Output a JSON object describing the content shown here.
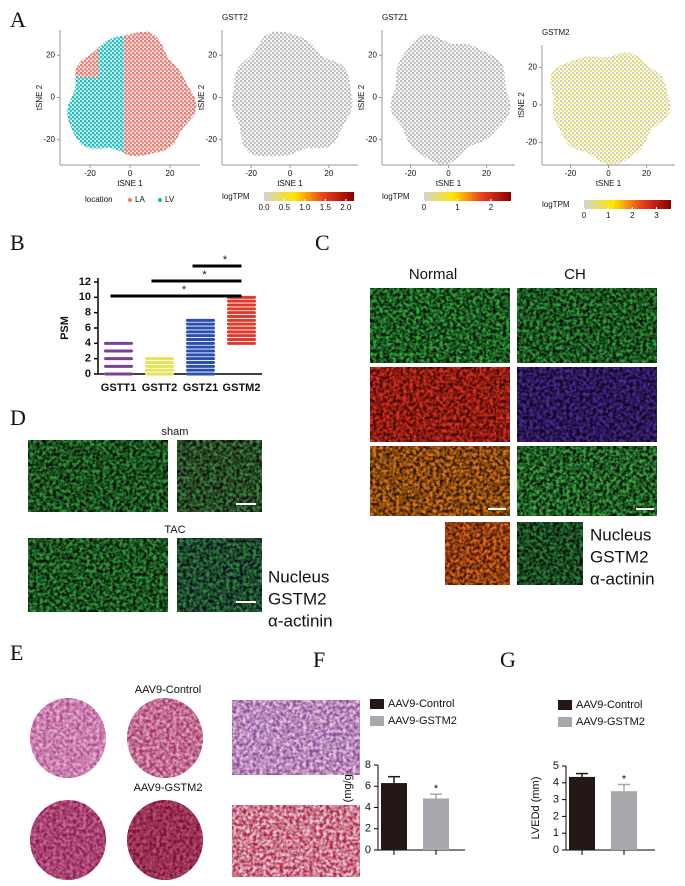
{
  "panel_labels": [
    "A",
    "B",
    "C",
    "D",
    "E",
    "F",
    "G"
  ],
  "chart_data": [
    {
      "type": "scatter",
      "xlabel": "tSNE 1",
      "ylabel": "tSNE 2",
      "xlim": [
        -35,
        35
      ],
      "ylim": [
        -32,
        32
      ],
      "xticks": [
        -20,
        0,
        20
      ],
      "yticks": [
        -20,
        0,
        20
      ],
      "legend": {
        "title": "location",
        "entries": [
          {
            "name": "LA",
            "color": "#f8766d"
          },
          {
            "name": "LV",
            "color": "#00bfc4"
          }
        ]
      }
    },
    {
      "type": "scatter",
      "title": "GSTT2",
      "xlabel": "tSNE 1",
      "ylabel": "tSNE 2",
      "xlim": [
        -35,
        35
      ],
      "ylim": [
        -32,
        32
      ],
      "xticks": [
        -20,
        0,
        20
      ],
      "yticks": [
        -20,
        0,
        20
      ],
      "colorbar": {
        "title": "logTPM",
        "lim": [
          0,
          2.2
        ],
        "ticks": [
          {
            "value": 0,
            "label": "0.0"
          },
          0.5,
          {
            "value": 1,
            "label": "1.0"
          },
          1.5,
          {
            "value": 2,
            "label": "2.0"
          }
        ],
        "colors": [
          "#d3d3d3",
          "#ffe600",
          "#e8401c",
          "#8b0000"
        ]
      }
    },
    {
      "type": "scatter",
      "title": "GSTZ1",
      "xlabel": "tSNE 1",
      "ylabel": "tSNE 2",
      "xlim": [
        -35,
        35
      ],
      "ylim": [
        -32,
        32
      ],
      "xticks": [
        -20,
        0,
        20
      ],
      "yticks": [
        -20,
        0,
        20
      ],
      "colorbar": {
        "title": "logTPM",
        "lim": [
          0,
          2.6
        ],
        "ticks": [
          0,
          1,
          2
        ],
        "colors": [
          "#d3d3d3",
          "#ffe600",
          "#e8401c",
          "#8b0000"
        ]
      }
    },
    {
      "type": "scatter",
      "title": "GSTM2",
      "xlabel": "tSNE 1",
      "ylabel": "tSNE 2",
      "xlim": [
        -35,
        35
      ],
      "ylim": [
        -32,
        32
      ],
      "xticks": [
        -20,
        0,
        20
      ],
      "yticks": [
        -20,
        0,
        20
      ],
      "colorbar": {
        "title": "logTPM",
        "lim": [
          0,
          3.6
        ],
        "ticks": [
          0,
          1,
          2,
          3
        ],
        "colors": [
          "#d3d3d3",
          "#ffe600",
          "#e8401c",
          "#8b0000"
        ]
      }
    },
    {
      "type": "strip",
      "ylabel": "PSM",
      "ylim": [
        0,
        12
      ],
      "yticks": [
        0,
        2,
        4,
        6,
        8,
        10,
        12
      ],
      "categories": [
        "GSTT1",
        "GSTT2",
        "GSTZ1",
        "GSTM2"
      ],
      "colors": [
        "#7b3f9e",
        "#e6e25a",
        "#2a4fb0",
        "#e03a2e"
      ],
      "values": [
        [
          0,
          1,
          2,
          3,
          4
        ],
        [
          0,
          0.5,
          1,
          1.5,
          2
        ],
        [
          0,
          0.5,
          1,
          1.5,
          2,
          2.5,
          3,
          3.5,
          4,
          4.5,
          5,
          5.5,
          6,
          6.5,
          7
        ],
        [
          4,
          4.5,
          5,
          5.5,
          6,
          6.5,
          7,
          7.5,
          8,
          8.5,
          9,
          9.5,
          10
        ]
      ],
      "annotations": [
        "*",
        "*",
        "*"
      ]
    },
    {
      "type": "bar",
      "ylabel": "HW/BW (mg/g)",
      "ylim": [
        0,
        8
      ],
      "yticks": [
        0,
        2,
        4,
        6,
        8
      ],
      "series": [
        {
          "name": "AAV9-Control",
          "color": "#231815",
          "values": [
            6.3
          ],
          "errors": [
            0.6
          ]
        },
        {
          "name": "AAV9-GSTM2",
          "color": "#a7a9ac",
          "values": [
            4.85
          ],
          "errors": [
            0.4
          ]
        }
      ],
      "annotation": "*"
    },
    {
      "type": "bar",
      "ylabel": "LVEDd (mm)",
      "ylim": [
        0,
        5
      ],
      "yticks": [
        0,
        1,
        2,
        3,
        4,
        5
      ],
      "series": [
        {
          "name": "AAV9-Control",
          "color": "#231815",
          "values": [
            4.35
          ],
          "errors": [
            0.2
          ]
        },
        {
          "name": "AAV9-GSTM2",
          "color": "#a7a9ac",
          "values": [
            3.5
          ],
          "errors": [
            0.4
          ]
        }
      ],
      "annotation": "*"
    }
  ],
  "panel_c": {
    "columns": [
      "Normal",
      "CH"
    ],
    "legend": [
      {
        "name": "Nucleus",
        "color": "#3c3cb4"
      },
      {
        "name": "GSTM2",
        "color": "#e8432f"
      },
      {
        "name": "α-actinin",
        "color": "#1ca34c"
      }
    ]
  },
  "panel_d": {
    "rows": [
      "sham",
      "TAC"
    ],
    "legend": [
      {
        "name": "Nucleus",
        "color": "#3c3cb4"
      },
      {
        "name": "GSTM2",
        "color": "#e8432f"
      },
      {
        "name": "α-actinin",
        "color": "#1ca34c"
      }
    ]
  },
  "panel_e": {
    "rows": [
      "AAV9-Control",
      "AAV9-GSTM2"
    ]
  }
}
